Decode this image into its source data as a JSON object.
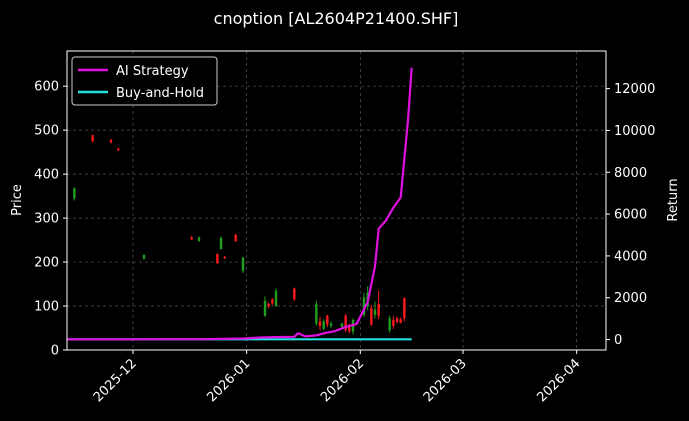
{
  "chart_data": {
    "type": "line",
    "title": "cnoption [AL2604P21400.SHF]",
    "ylabel_left": "Price",
    "ylabel_right": "Return",
    "xlabel": "",
    "x_ticks": [
      "2025-12",
      "2026-01",
      "2026-02",
      "2026-03",
      "2026-04"
    ],
    "x_range": [
      "2025-11-13",
      "2026-04-09"
    ],
    "ylim_left": [
      0,
      680
    ],
    "yticks_left": [
      0,
      100,
      200,
      300,
      400,
      500,
      600
    ],
    "ylim_right": [
      -500,
      13800
    ],
    "yticks_right": [
      0,
      2000,
      4000,
      6000,
      8000,
      10000,
      12000
    ],
    "grid": true,
    "legend_position": "top-left",
    "colors": {
      "up": "#1f9e1f",
      "down": "#ff1a1a",
      "ai": "#e010e0",
      "bh": "#22e0e0",
      "grid": "#555555",
      "background": "#000000"
    },
    "legend": [
      {
        "name": "AI Strategy",
        "color": "#e010e0"
      },
      {
        "name": "Buy-and-Hold",
        "color": "#22e0e0"
      }
    ],
    "candles": [
      {
        "date": "2025-11-15",
        "open": 345,
        "high": 370,
        "low": 340,
        "close": 368
      },
      {
        "date": "2025-11-20",
        "open": 488,
        "high": 490,
        "low": 472,
        "close": 475
      },
      {
        "date": "2025-11-25",
        "open": 478,
        "high": 480,
        "low": 470,
        "close": 472
      },
      {
        "date": "2025-11-27",
        "open": 458,
        "high": 460,
        "low": 452,
        "close": 455
      },
      {
        "date": "2025-12-04",
        "open": 208,
        "high": 218,
        "low": 205,
        "close": 216
      },
      {
        "date": "2025-12-17",
        "open": 256,
        "high": 259,
        "low": 250,
        "close": 252
      },
      {
        "date": "2025-12-19",
        "open": 248,
        "high": 258,
        "low": 246,
        "close": 256
      },
      {
        "date": "2025-12-24",
        "open": 218,
        "high": 220,
        "low": 195,
        "close": 198
      },
      {
        "date": "2025-12-25",
        "open": 230,
        "high": 258,
        "low": 228,
        "close": 255
      },
      {
        "date": "2025-12-26",
        "open": 212,
        "high": 214,
        "low": 207,
        "close": 209
      },
      {
        "date": "2025-12-29",
        "open": 262,
        "high": 264,
        "low": 246,
        "close": 248
      },
      {
        "date": "2025-12-31",
        "open": 180,
        "high": 212,
        "low": 175,
        "close": 210
      },
      {
        "date": "2026-01-06",
        "open": 78,
        "high": 122,
        "low": 75,
        "close": 112
      },
      {
        "date": "2026-01-07",
        "open": 105,
        "high": 108,
        "low": 95,
        "close": 100
      },
      {
        "date": "2026-01-08",
        "open": 115,
        "high": 118,
        "low": 102,
        "close": 106
      },
      {
        "date": "2026-01-09",
        "open": 100,
        "high": 140,
        "low": 98,
        "close": 135
      },
      {
        "date": "2026-01-14",
        "open": 140,
        "high": 142,
        "low": 112,
        "close": 115
      },
      {
        "date": "2026-01-20",
        "open": 60,
        "high": 112,
        "low": 55,
        "close": 105
      },
      {
        "date": "2026-01-21",
        "open": 65,
        "high": 75,
        "low": 45,
        "close": 55
      },
      {
        "date": "2026-01-22",
        "open": 48,
        "high": 70,
        "low": 45,
        "close": 65
      },
      {
        "date": "2026-01-23",
        "open": 78,
        "high": 80,
        "low": 52,
        "close": 58
      },
      {
        "date": "2026-01-24",
        "open": 55,
        "high": 65,
        "low": 50,
        "close": 60
      },
      {
        "date": "2026-01-27",
        "open": 52,
        "high": 62,
        "low": 48,
        "close": 60
      },
      {
        "date": "2026-01-28",
        "open": 78,
        "high": 82,
        "low": 40,
        "close": 45
      },
      {
        "date": "2026-01-29",
        "open": 55,
        "high": 60,
        "low": 38,
        "close": 42
      },
      {
        "date": "2026-01-30",
        "open": 42,
        "high": 72,
        "low": 35,
        "close": 68
      },
      {
        "date": "2026-02-02",
        "open": 80,
        "high": 130,
        "low": 75,
        "close": 120
      },
      {
        "date": "2026-02-03",
        "open": 100,
        "high": 145,
        "low": 90,
        "close": 130
      },
      {
        "date": "2026-02-04",
        "open": 95,
        "high": 102,
        "low": 55,
        "close": 58
      },
      {
        "date": "2026-02-05",
        "open": 80,
        "high": 110,
        "low": 72,
        "close": 92
      },
      {
        "date": "2026-02-06",
        "open": 105,
        "high": 135,
        "low": 70,
        "close": 78
      },
      {
        "date": "2026-02-09",
        "open": 45,
        "high": 78,
        "low": 40,
        "close": 72
      },
      {
        "date": "2026-02-10",
        "open": 68,
        "high": 78,
        "low": 48,
        "close": 55
      },
      {
        "date": "2026-02-11",
        "open": 72,
        "high": 76,
        "low": 60,
        "close": 64
      },
      {
        "date": "2026-02-12",
        "open": 70,
        "high": 74,
        "low": 60,
        "close": 62
      },
      {
        "date": "2026-02-13",
        "open": 118,
        "high": 120,
        "low": 65,
        "close": 72
      }
    ],
    "series": [
      {
        "name": "AI Strategy",
        "color": "#e010e0",
        "points": [
          [
            "2025-11-13",
            10
          ],
          [
            "2025-12-01",
            10
          ],
          [
            "2025-12-20",
            15
          ],
          [
            "2025-12-31",
            50
          ],
          [
            "2026-01-05",
            100
          ],
          [
            "2026-01-10",
            120
          ],
          [
            "2026-01-14",
            130
          ],
          [
            "2026-01-15",
            300
          ],
          [
            "2026-01-17",
            150
          ],
          [
            "2026-01-20",
            200
          ],
          [
            "2026-01-22",
            300
          ],
          [
            "2026-01-25",
            400
          ],
          [
            "2026-01-28",
            600
          ],
          [
            "2026-01-31",
            750
          ],
          [
            "2026-02-03",
            1800
          ],
          [
            "2026-02-05",
            3500
          ],
          [
            "2026-02-06",
            5300
          ],
          [
            "2026-02-08",
            5700
          ],
          [
            "2026-02-10",
            6300
          ],
          [
            "2026-02-12",
            6800
          ],
          [
            "2026-02-14",
            10500
          ],
          [
            "2026-02-15",
            13000
          ]
        ]
      },
      {
        "name": "Buy-and-Hold",
        "color": "#22e0e0",
        "points": [
          [
            "2025-11-13",
            10
          ],
          [
            "2026-02-15",
            10
          ]
        ]
      }
    ]
  }
}
